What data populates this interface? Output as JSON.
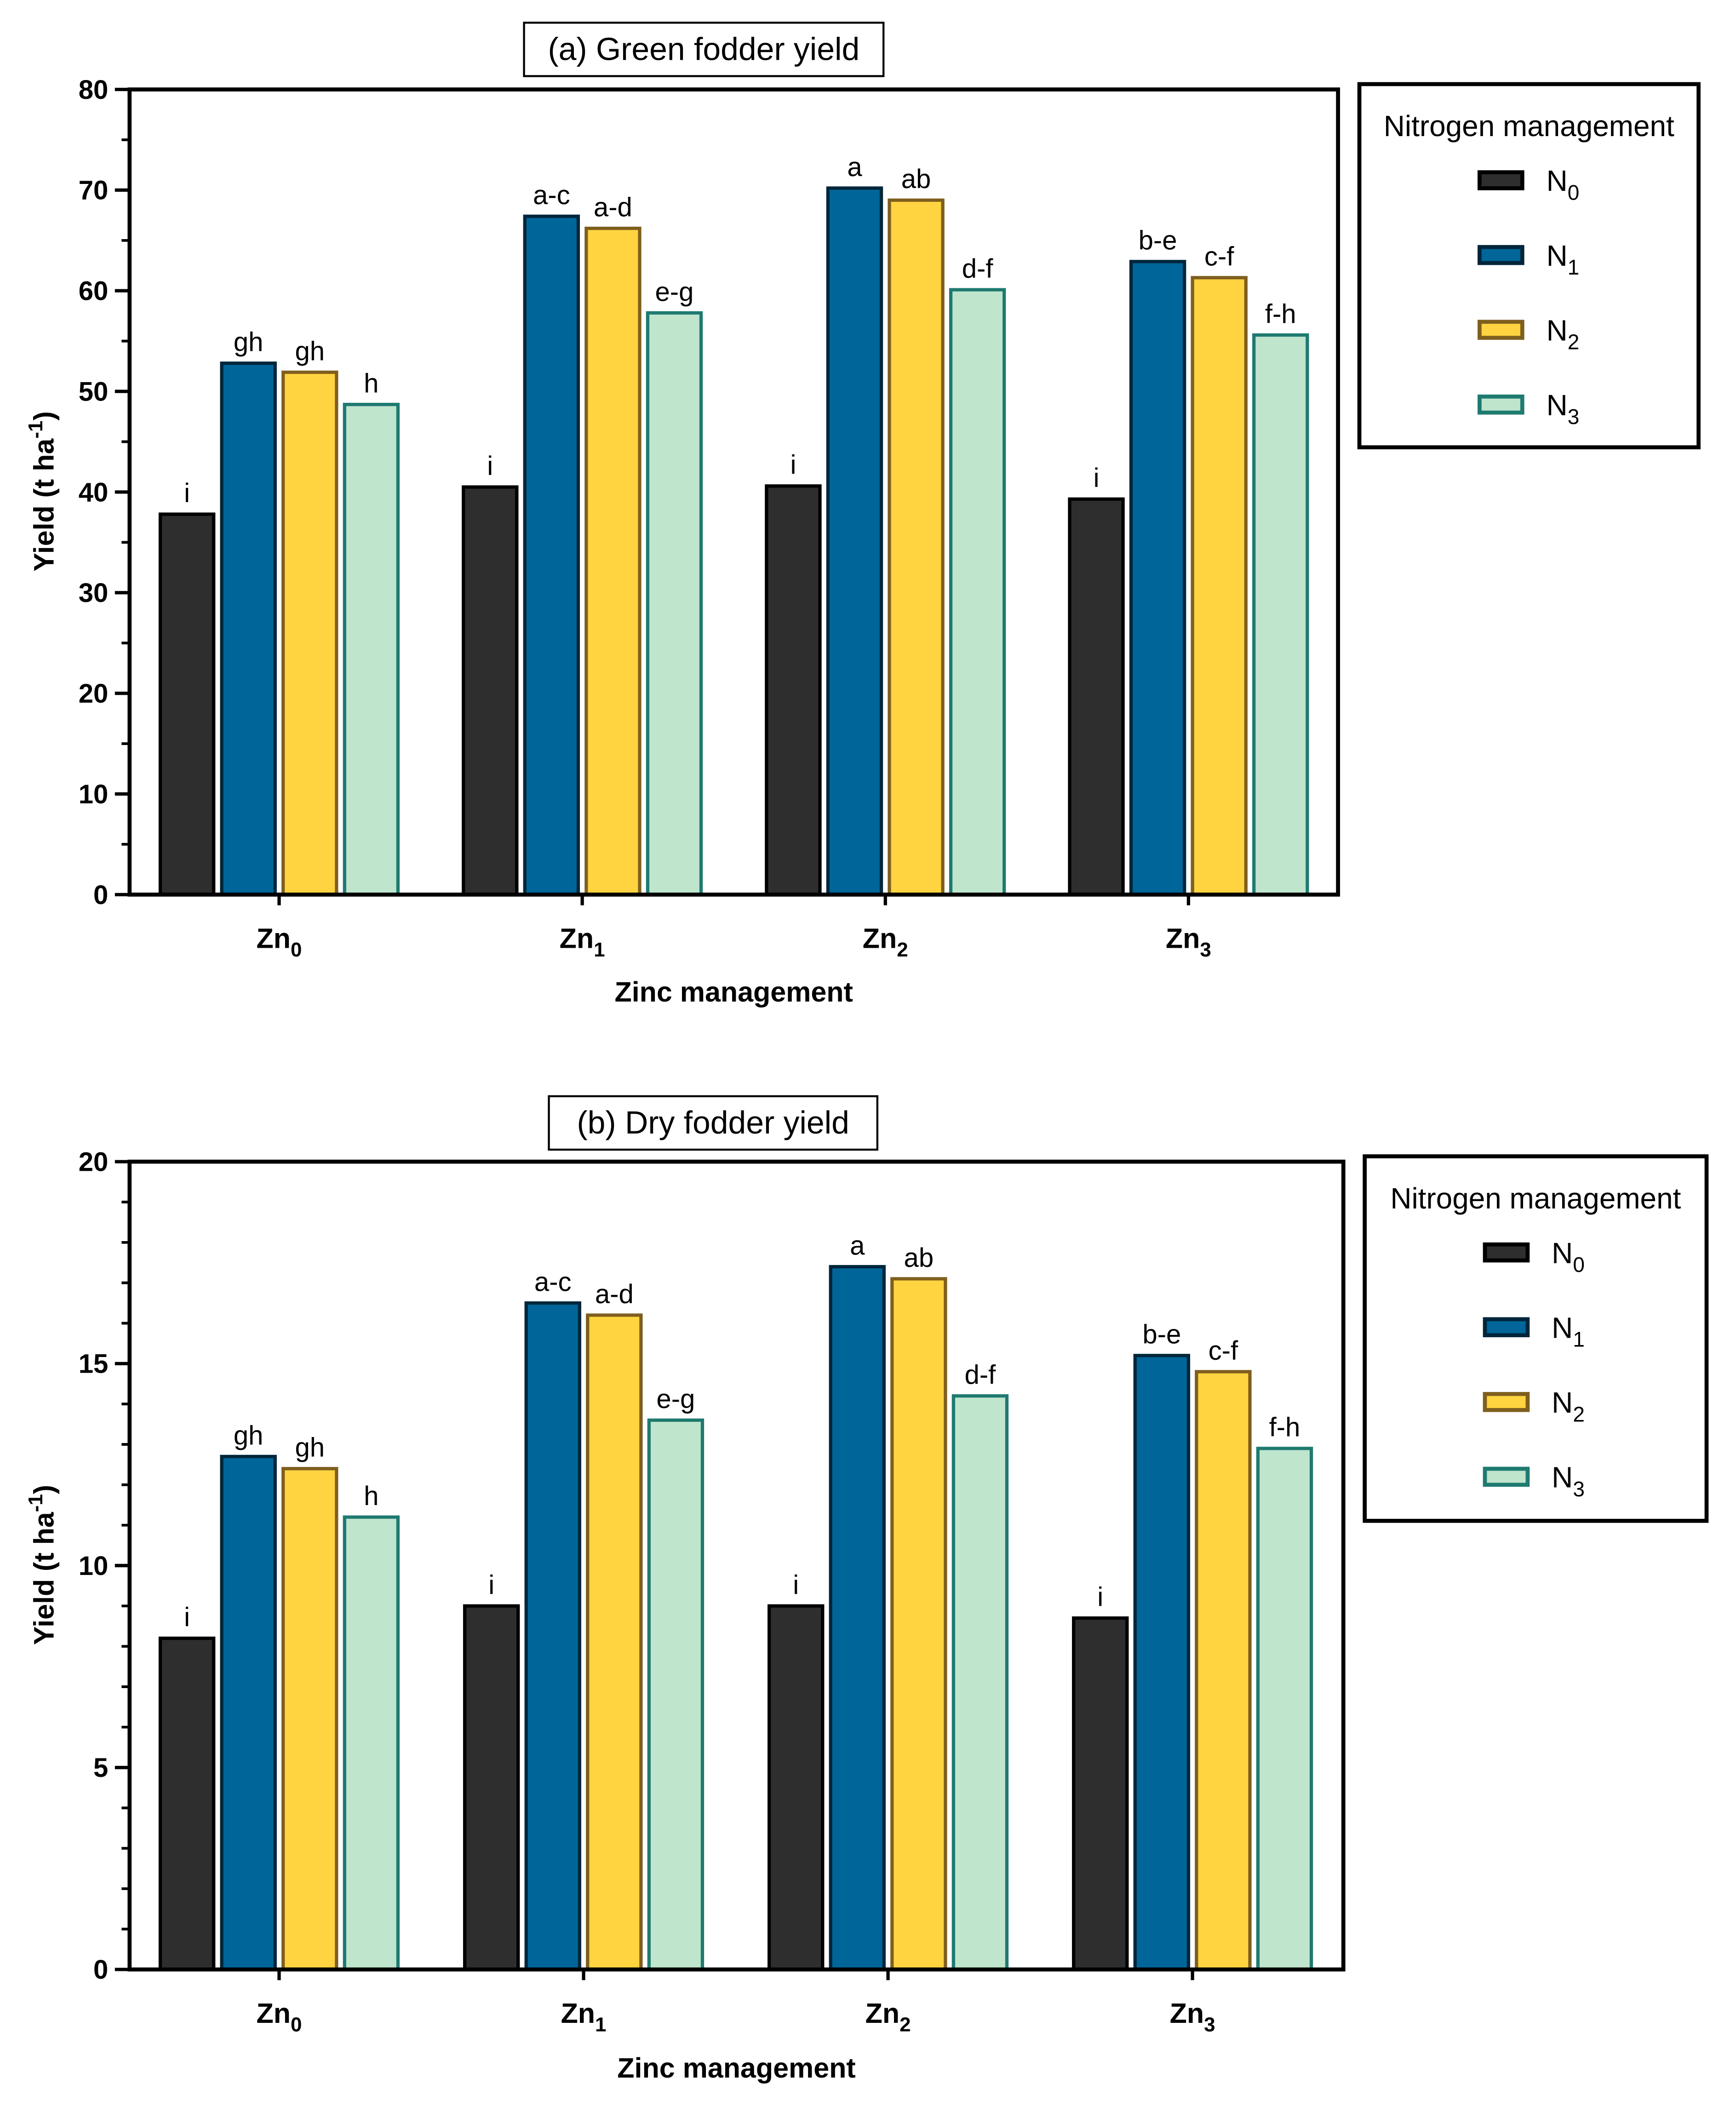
{
  "colors": {
    "N0": {
      "fill": "#2e2e2e",
      "stroke": "#000000"
    },
    "N1": {
      "fill": "#006699",
      "stroke": "#00263a"
    },
    "N2": {
      "fill": "#ffd440",
      "stroke": "#7f5f1e"
    },
    "N3": {
      "fill": "#bfe5cd",
      "stroke": "#1f7a70"
    }
  },
  "chart_data": [
    {
      "type": "bar",
      "title": "(a) Green fodder yield",
      "xlabel": "Zinc management",
      "ylabel": {
        "base": "Yield (t ha",
        "sup": "-1",
        "end": ")"
      },
      "categories": [
        {
          "base": "Zn",
          "sub": "0"
        },
        {
          "base": "Zn",
          "sub": "1"
        },
        {
          "base": "Zn",
          "sub": "2"
        },
        {
          "base": "Zn",
          "sub": "3"
        }
      ],
      "ylim": [
        0,
        80
      ],
      "yticks": [
        0,
        10,
        20,
        30,
        40,
        50,
        60,
        70,
        80
      ],
      "minor_tick_step": 5,
      "legend": {
        "title": "Nitrogen management",
        "placement": "right"
      },
      "series": [
        {
          "name": {
            "base": "N",
            "sub": "0"
          },
          "key": "N0",
          "values": [
            37.8,
            40.5,
            40.6,
            39.3
          ],
          "labels": [
            "i",
            "i",
            "i",
            "i"
          ]
        },
        {
          "name": {
            "base": "N",
            "sub": "1"
          },
          "key": "N1",
          "values": [
            52.8,
            67.4,
            70.2,
            62.9
          ],
          "labels": [
            "gh",
            "a-c",
            "a",
            "b-e"
          ]
        },
        {
          "name": {
            "base": "N",
            "sub": "2"
          },
          "key": "N2",
          "values": [
            51.9,
            66.2,
            69.0,
            61.3
          ],
          "labels": [
            "gh",
            "a-d",
            "ab",
            "c-f"
          ]
        },
        {
          "name": {
            "base": "N",
            "sub": "3"
          },
          "key": "N3",
          "values": [
            48.7,
            57.8,
            60.1,
            55.6
          ],
          "labels": [
            "h",
            "e-g",
            "d-f",
            "f-h"
          ]
        }
      ]
    },
    {
      "type": "bar",
      "title": "(b) Dry fodder yield",
      "xlabel": "Zinc management",
      "ylabel": {
        "base": "Yield (t ha",
        "sup": "-1",
        "end": ")"
      },
      "categories": [
        {
          "base": "Zn",
          "sub": "0"
        },
        {
          "base": "Zn",
          "sub": "1"
        },
        {
          "base": "Zn",
          "sub": "2"
        },
        {
          "base": "Zn",
          "sub": "3"
        }
      ],
      "ylim": [
        0,
        20
      ],
      "yticks": [
        0,
        5,
        10,
        15,
        20
      ],
      "minor_tick_step": 1,
      "legend": {
        "title": "Nitrogen management",
        "placement": "right"
      },
      "series": [
        {
          "name": {
            "base": "N",
            "sub": "0"
          },
          "key": "N0",
          "values": [
            8.2,
            9.0,
            9.0,
            8.7
          ],
          "labels": [
            "i",
            "i",
            "i",
            "i"
          ]
        },
        {
          "name": {
            "base": "N",
            "sub": "1"
          },
          "key": "N1",
          "values": [
            12.7,
            16.5,
            17.4,
            15.2
          ],
          "labels": [
            "gh",
            "a-c",
            "a",
            "b-e"
          ]
        },
        {
          "name": {
            "base": "N",
            "sub": "2"
          },
          "key": "N2",
          "values": [
            12.4,
            16.2,
            17.1,
            14.8
          ],
          "labels": [
            "gh",
            "a-d",
            "ab",
            "c-f"
          ]
        },
        {
          "name": {
            "base": "N",
            "sub": "3"
          },
          "key": "N3",
          "values": [
            11.2,
            13.6,
            14.2,
            12.9
          ],
          "labels": [
            "h",
            "e-g",
            "d-f",
            "f-h"
          ]
        }
      ]
    }
  ]
}
